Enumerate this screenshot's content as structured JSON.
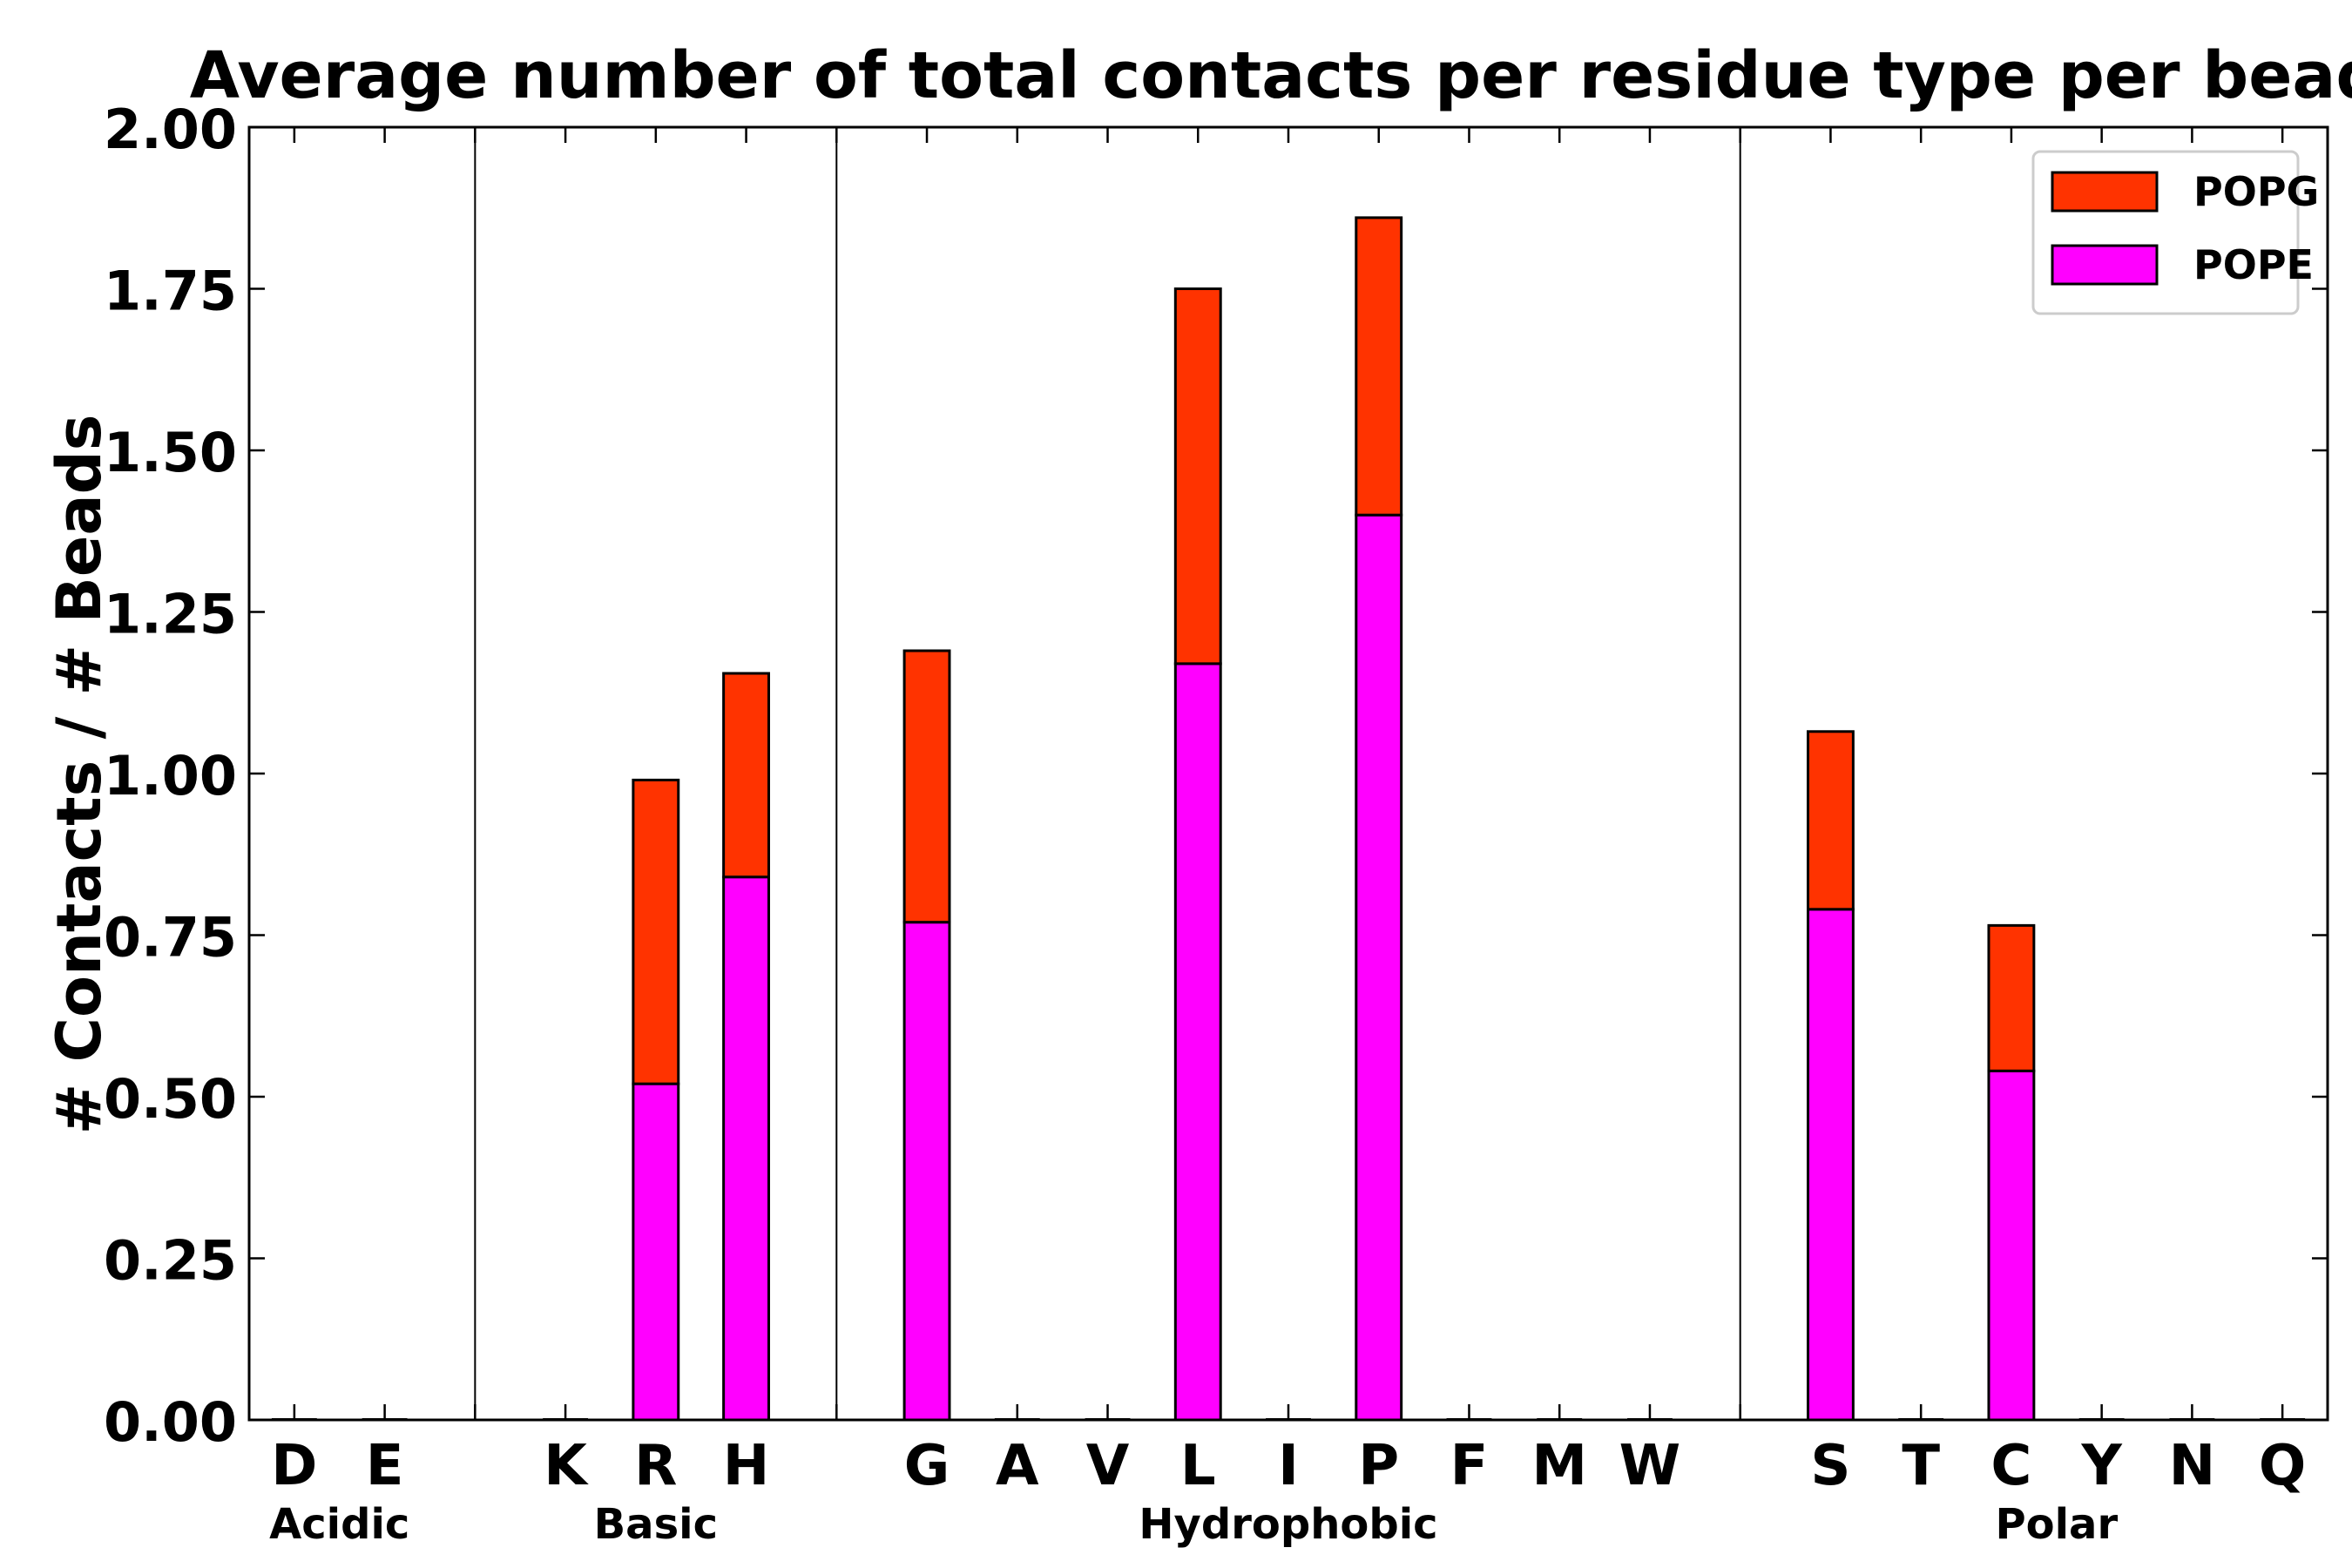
{
  "chart_data": {
    "type": "bar",
    "stacked": true,
    "title": "Average number of total contacts per residue type per bead",
    "xlabel": "",
    "ylabel": "# Contacts / # Beads",
    "ylim": [
      0,
      2.0
    ],
    "yticks": [
      "0.00",
      "0.25",
      "0.50",
      "0.75",
      "1.00",
      "1.25",
      "1.50",
      "1.75",
      "2.00"
    ],
    "ytick_values": [
      0,
      0.25,
      0.5,
      0.75,
      1.0,
      1.25,
      1.5,
      1.75,
      2.0
    ],
    "categories": [
      "D",
      "E",
      "",
      "K",
      "R",
      "H",
      "",
      "G",
      "A",
      "V",
      "L",
      "I",
      "P",
      "F",
      "M",
      "W",
      "",
      "S",
      "T",
      "C",
      "Y",
      "N",
      "Q"
    ],
    "series": [
      {
        "name": "POPE",
        "color": "#ff00ff",
        "values": [
          0,
          0,
          0,
          0,
          0.52,
          0.84,
          0,
          0.77,
          0,
          0,
          1.17,
          0,
          1.4,
          0,
          0,
          0,
          0,
          0.79,
          0,
          0.54,
          0,
          0,
          0
        ]
      },
      {
        "name": "POPG",
        "color": "#ff3300",
        "values": [
          0,
          0,
          0,
          0,
          0.47,
          0.315,
          0,
          0.42,
          0,
          0,
          0.58,
          0,
          0.46,
          0,
          0,
          0,
          0,
          0.275,
          0,
          0.225,
          0,
          0,
          0
        ]
      }
    ],
    "legend_order": [
      "POPG",
      "POPE"
    ],
    "legend_position": "top-right",
    "groups": [
      {
        "label": "Acidic",
        "first": 0,
        "last": 1
      },
      {
        "label": "Basic",
        "first": 3,
        "last": 5
      },
      {
        "label": "Hydrophobic",
        "first": 7,
        "last": 15
      },
      {
        "label": "Polar",
        "first": 17,
        "last": 22
      }
    ],
    "separators_after": [
      2,
      6,
      16
    ],
    "grid": false
  }
}
